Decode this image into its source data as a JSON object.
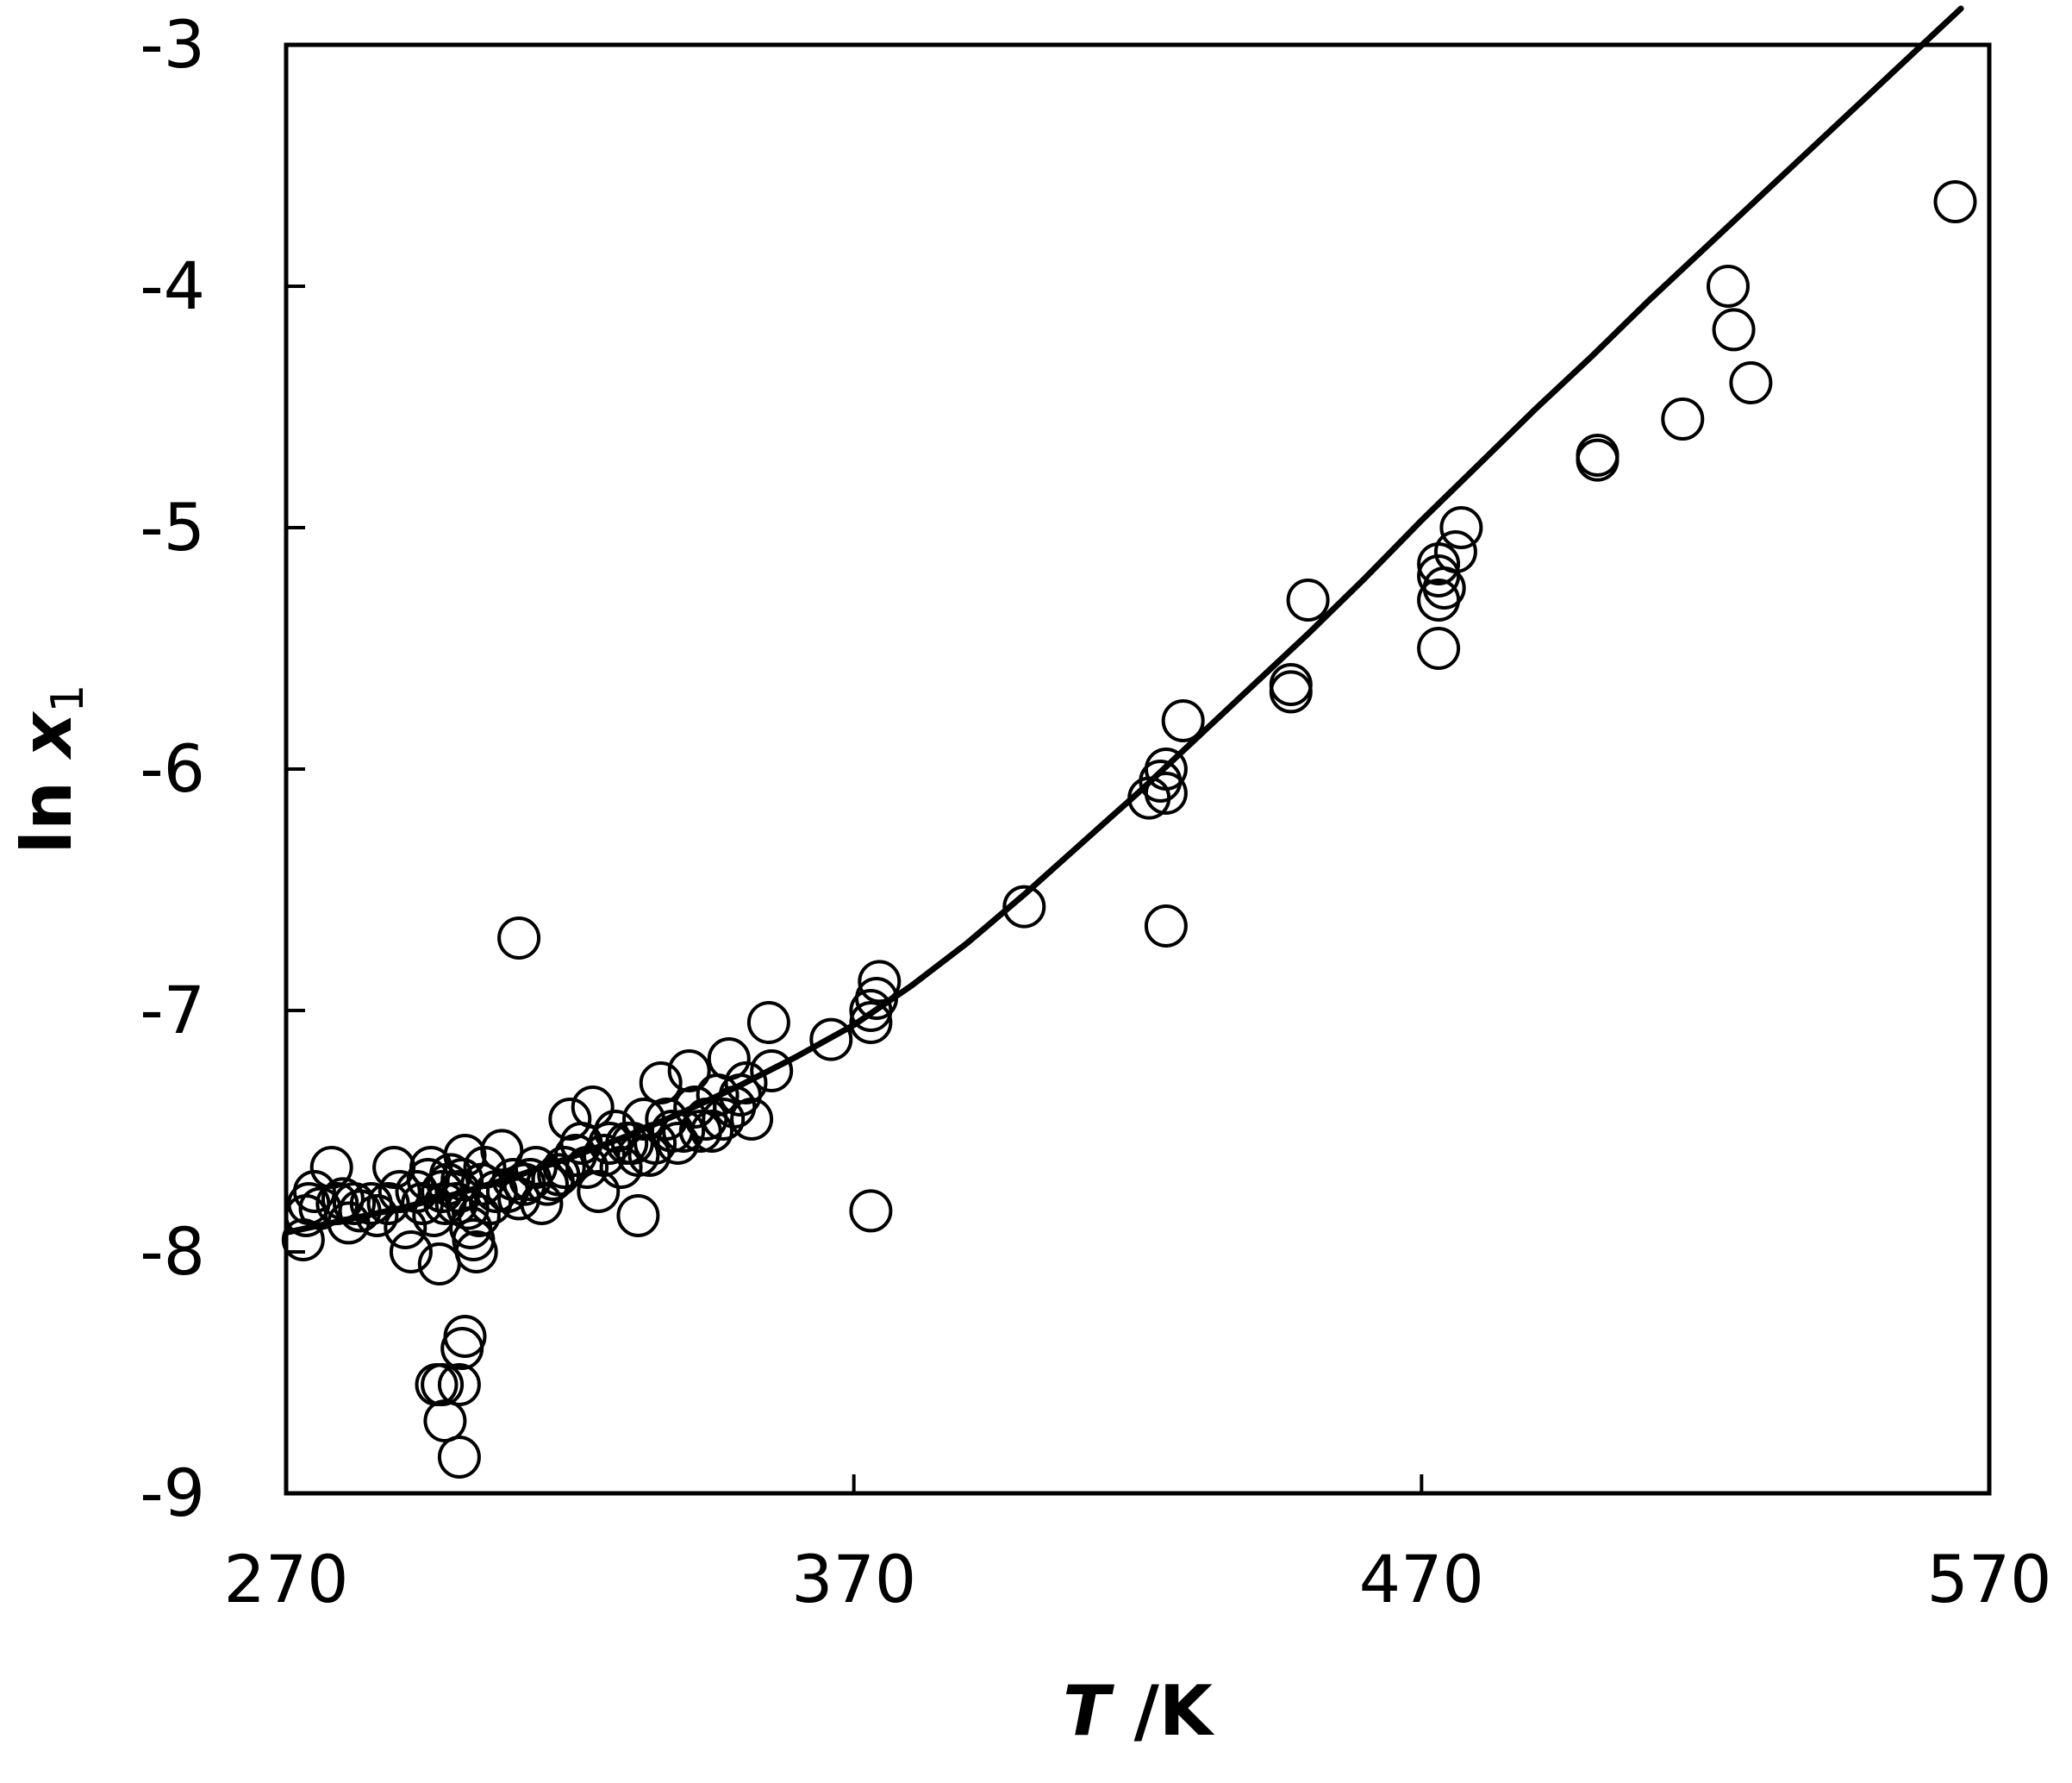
{
  "chart_data": {
    "type": "scatter",
    "title": "",
    "xlabel": {
      "var": "T",
      "unit": " /K"
    },
    "ylabel": {
      "prefix": "ln ",
      "var": "x",
      "sub": "1"
    },
    "xlim": [
      270,
      570
    ],
    "ylim": [
      -9,
      -3
    ],
    "xticks": [
      270,
      370,
      470,
      570
    ],
    "yticks": [
      -9,
      -8,
      -7,
      -6,
      -5,
      -4,
      -3
    ],
    "grid": false,
    "legend": "none",
    "marker": "open-circle",
    "points": [
      [
        273,
        -7.95
      ],
      [
        273.5,
        -7.85
      ],
      [
        274,
        -7.8
      ],
      [
        275,
        -7.75
      ],
      [
        276,
        -7.82
      ],
      [
        278,
        -7.65
      ],
      [
        279,
        -7.8
      ],
      [
        280,
        -7.78
      ],
      [
        281,
        -7.88
      ],
      [
        282,
        -7.8
      ],
      [
        283,
        -7.83
      ],
      [
        285,
        -7.8
      ],
      [
        286,
        -7.85
      ],
      [
        288,
        -7.8
      ],
      [
        289,
        -7.65
      ],
      [
        290,
        -7.75
      ],
      [
        291,
        -7.9
      ],
      [
        292,
        -8.0
      ],
      [
        293,
        -7.75
      ],
      [
        294,
        -7.8
      ],
      [
        295,
        -7.7
      ],
      [
        295.5,
        -7.65
      ],
      [
        296,
        -7.85
      ],
      [
        297,
        -8.05
      ],
      [
        297.5,
        -7.75
      ],
      [
        298,
        -7.8
      ],
      [
        298.5,
        -7.72
      ],
      [
        299,
        -7.68
      ],
      [
        300,
        -7.8
      ],
      [
        300.5,
        -7.75
      ],
      [
        301,
        -7.7
      ],
      [
        301.5,
        -7.6
      ],
      [
        302,
        -7.82
      ],
      [
        302.5,
        -7.9
      ],
      [
        303,
        -7.95
      ],
      [
        303.5,
        -8.0
      ],
      [
        304,
        -7.85
      ],
      [
        304.5,
        -7.72
      ],
      [
        305,
        -7.65
      ],
      [
        306,
        -7.8
      ],
      [
        307,
        -7.75
      ],
      [
        308,
        -7.58
      ],
      [
        309,
        -7.75
      ],
      [
        310,
        -7.7
      ],
      [
        311,
        -7.78
      ],
      [
        312,
        -7.72
      ],
      [
        313,
        -7.7
      ],
      [
        314,
        -7.65
      ],
      [
        315,
        -7.8
      ],
      [
        316,
        -7.72
      ],
      [
        317,
        -7.7
      ],
      [
        318,
        -7.68
      ],
      [
        319,
        -7.65
      ],
      [
        320,
        -7.45
      ],
      [
        321,
        -7.6
      ],
      [
        322,
        -7.55
      ],
      [
        323,
        -7.65
      ],
      [
        324,
        -7.4
      ],
      [
        325,
        -7.75
      ],
      [
        326,
        -7.6
      ],
      [
        327,
        -7.55
      ],
      [
        328,
        -7.5
      ],
      [
        329,
        -7.65
      ],
      [
        330,
        -7.55
      ],
      [
        331,
        -7.55
      ],
      [
        332,
        -7.6
      ],
      [
        333,
        -7.45
      ],
      [
        334,
        -7.6
      ],
      [
        335,
        -7.55
      ],
      [
        336,
        -7.3
      ],
      [
        337,
        -7.45
      ],
      [
        338,
        -7.5
      ],
      [
        339,
        -7.55
      ],
      [
        340,
        -7.5
      ],
      [
        341,
        -7.25
      ],
      [
        342,
        -7.4
      ],
      [
        343,
        -7.5
      ],
      [
        344,
        -7.45
      ],
      [
        345,
        -7.5
      ],
      [
        346,
        -7.35
      ],
      [
        347,
        -7.45
      ],
      [
        348,
        -7.2
      ],
      [
        349,
        -7.4
      ],
      [
        350,
        -7.35
      ],
      [
        351,
        -7.3
      ],
      [
        352,
        -7.45
      ],
      [
        296.5,
        -8.55
      ],
      [
        297.5,
        -8.55
      ],
      [
        298,
        -8.7
      ],
      [
        300.5,
        -8.55
      ],
      [
        301,
        -8.4
      ],
      [
        301.5,
        -8.35
      ],
      [
        300.5,
        -8.85
      ],
      [
        311,
        -6.7
      ],
      [
        332,
        -7.85
      ],
      [
        355,
        -7.05
      ],
      [
        355.5,
        -7.25
      ],
      [
        366,
        -7.12
      ],
      [
        373,
        -7.0
      ],
      [
        374,
        -6.95
      ],
      [
        374.5,
        -6.88
      ],
      [
        373,
        -7.05
      ],
      [
        373,
        -7.83
      ],
      [
        400,
        -6.57
      ],
      [
        422,
        -6.12
      ],
      [
        424,
        -6.05
      ],
      [
        425,
        -6.0
      ],
      [
        425,
        -6.1
      ],
      [
        428,
        -5.8
      ],
      [
        425,
        -6.65
      ],
      [
        447,
        -5.68
      ],
      [
        447,
        -5.65
      ],
      [
        450,
        -5.3
      ],
      [
        473,
        -5.2
      ],
      [
        473,
        -5.15
      ],
      [
        473,
        -5.3
      ],
      [
        473,
        -5.5
      ],
      [
        474,
        -5.25
      ],
      [
        476,
        -5.1
      ],
      [
        477,
        -5.0
      ],
      [
        501,
        -4.7
      ],
      [
        501,
        -4.72
      ],
      [
        516,
        -4.55
      ],
      [
        524,
        -4.0
      ],
      [
        525,
        -4.18
      ],
      [
        528,
        -4.4
      ],
      [
        564,
        -3.65
      ]
    ],
    "fit_line": {
      "x": [
        270,
        280,
        290,
        300,
        310,
        320,
        330,
        340,
        350,
        360,
        370,
        380,
        390,
        400,
        410,
        420,
        430,
        440,
        450,
        460,
        470,
        480,
        490,
        500,
        510,
        520,
        530,
        540,
        550,
        560,
        565
      ],
      "y": [
        -7.92,
        -7.87,
        -7.82,
        -7.76,
        -7.69,
        -7.61,
        -7.52,
        -7.42,
        -7.31,
        -7.19,
        -7.06,
        -6.9,
        -6.72,
        -6.52,
        -6.31,
        -6.1,
        -5.88,
        -5.66,
        -5.44,
        -5.21,
        -4.97,
        -4.74,
        -4.51,
        -4.29,
        -4.06,
        -3.84,
        -3.62,
        -3.4,
        -3.18,
        -2.96,
        -2.85
      ]
    }
  }
}
